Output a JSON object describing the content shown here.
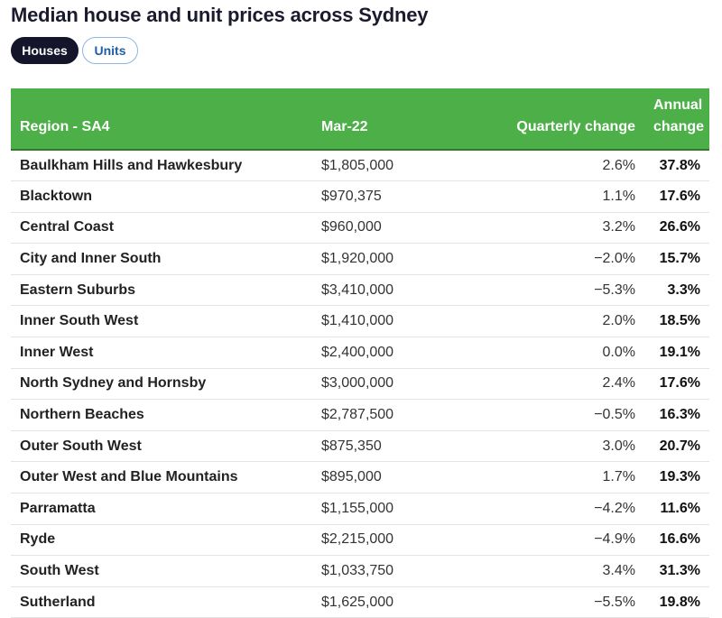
{
  "title": "Median house and unit prices across Sydney",
  "tabs": [
    {
      "label": "Houses",
      "active": true
    },
    {
      "label": "Units",
      "active": false
    }
  ],
  "colors": {
    "header_bg": "#4caf48",
    "active_tab": "#14142b",
    "inactive_tab_text": "#1e5fa8"
  },
  "table": {
    "headers": {
      "region": "Region - SA4",
      "price": "Mar-22",
      "quarterly": "Quarterly change",
      "annual_line1": "Annual",
      "annual_line2": "change"
    },
    "rows": [
      {
        "region": "Baulkham Hills and Hawkesbury",
        "price": "$1,805,000",
        "quarterly": "2.6%",
        "annual": "37.8%"
      },
      {
        "region": "Blacktown",
        "price": "$970,375",
        "quarterly": "1.1%",
        "annual": "17.6%"
      },
      {
        "region": "Central Coast",
        "price": "$960,000",
        "quarterly": "3.2%",
        "annual": "26.6%"
      },
      {
        "region": "City and Inner South",
        "price": "$1,920,000",
        "quarterly": "−2.0%",
        "annual": "15.7%"
      },
      {
        "region": "Eastern Suburbs",
        "price": "$3,410,000",
        "quarterly": "−5.3%",
        "annual": "3.3%"
      },
      {
        "region": "Inner South West",
        "price": "$1,410,000",
        "quarterly": "2.0%",
        "annual": "18.5%"
      },
      {
        "region": "Inner West",
        "price": "$2,400,000",
        "quarterly": "0.0%",
        "annual": "19.1%"
      },
      {
        "region": "North Sydney and Hornsby",
        "price": "$3,000,000",
        "quarterly": "2.4%",
        "annual": "17.6%"
      },
      {
        "region": "Northern Beaches",
        "price": "$2,787,500",
        "quarterly": "−0.5%",
        "annual": "16.3%"
      },
      {
        "region": "Outer South West",
        "price": "$875,350",
        "quarterly": "3.0%",
        "annual": "20.7%"
      },
      {
        "region": "Outer West and Blue Mountains",
        "price": "$895,000",
        "quarterly": "1.7%",
        "annual": "19.3%"
      },
      {
        "region": "Parramatta",
        "price": "$1,155,000",
        "quarterly": "−4.2%",
        "annual": "11.6%"
      },
      {
        "region": "Ryde",
        "price": "$2,215,000",
        "quarterly": "−4.9%",
        "annual": "16.6%"
      },
      {
        "region": "South West",
        "price": "$1,033,750",
        "quarterly": "3.4%",
        "annual": "31.3%"
      },
      {
        "region": "Sutherland",
        "price": "$1,625,000",
        "quarterly": "−5.5%",
        "annual": "19.8%"
      }
    ]
  }
}
